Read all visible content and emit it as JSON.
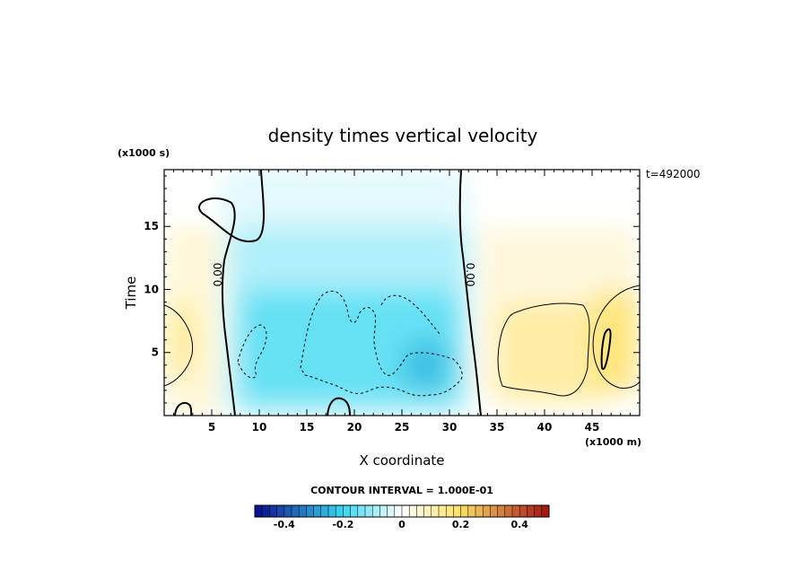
{
  "chart_data": {
    "type": "heatmap",
    "title": "density times vertical velocity",
    "xlabel": "X coordinate",
    "ylabel": "Time",
    "x_unit_label": "(x1000 m)",
    "y_unit_label": "(x1000 s)",
    "annotation": "t=492000",
    "xlim": [
      0,
      50
    ],
    "ylim": [
      0,
      19.5
    ],
    "x_ticks": [
      5,
      10,
      15,
      20,
      25,
      30,
      35,
      40,
      45
    ],
    "y_ticks": [
      5,
      10,
      15
    ],
    "contour_interval_text": "CONTOUR INTERVAL = 1.000E-01",
    "contour_label": "0.00",
    "colorbar": {
      "range": [
        -0.5,
        0.5
      ],
      "tick_values": [
        -0.4,
        -0.2,
        0,
        0.2,
        0.4
      ],
      "tick_labels": [
        "-0.4",
        "-0.2",
        "0",
        "0.2",
        "0.4"
      ],
      "low_color": "#0a0a8c",
      "mid_low_color": "#3ad8f0",
      "zero_color": "#ffffff",
      "mid_high_color": "#ffe066",
      "high_color": "#a01010"
    },
    "field_regions": [
      {
        "x": [
          0,
          6
        ],
        "y": [
          0,
          15
        ],
        "value": 0.07
      },
      {
        "x": [
          0,
          3.5
        ],
        "y": [
          3,
          9
        ],
        "value": 0.15
      },
      {
        "x": [
          6,
          32
        ],
        "y": [
          0,
          19.5
        ],
        "value": -0.04
      },
      {
        "x": [
          7,
          32
        ],
        "y": [
          0,
          15
        ],
        "value": -0.1
      },
      {
        "x": [
          8,
          31
        ],
        "y": [
          1,
          10
        ],
        "value": -0.18
      },
      {
        "x": [
          25,
          30
        ],
        "y": [
          2,
          6
        ],
        "value": -0.25
      },
      {
        "x": [
          33,
          50
        ],
        "y": [
          1,
          15
        ],
        "value": 0.06
      },
      {
        "x": [
          35,
          47
        ],
        "y": [
          1,
          9
        ],
        "value": 0.14
      },
      {
        "x": [
          45,
          50
        ],
        "y": [
          2,
          10
        ],
        "value": 0.2
      }
    ]
  }
}
